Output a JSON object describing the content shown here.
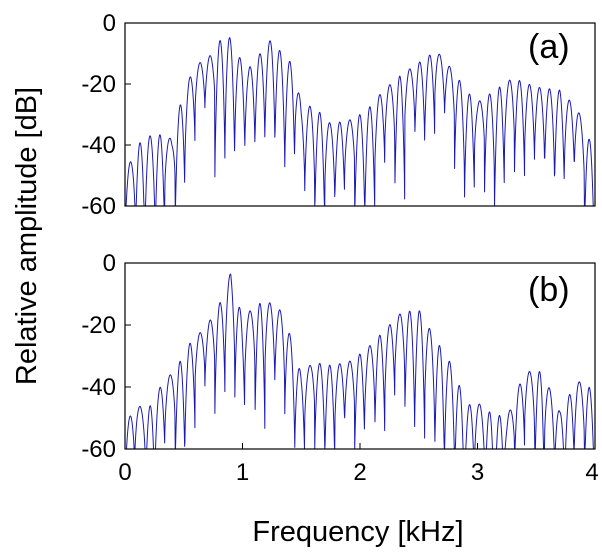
{
  "figure": {
    "xlabel": "Frequency [kHz]",
    "ylabel": "Relative amplitude [dB]",
    "line_color": "#1b1bb0"
  },
  "chart_data": [
    {
      "type": "line",
      "panel_label": "(a)",
      "xlim": [
        0,
        4
      ],
      "ylim": [
        -60,
        0
      ],
      "x_ticks": [
        0,
        1,
        2,
        3,
        4
      ],
      "y_ticks": [
        0,
        -20,
        -40,
        -60
      ],
      "y_tick_labels": [
        "0",
        "-20",
        "-40",
        "-60"
      ],
      "lobe_spacing_khz": 0.085,
      "envelope": {
        "x": [
          0,
          0.1,
          0.25,
          0.4,
          0.5,
          0.6,
          0.75,
          0.86,
          0.95,
          1.05,
          1.15,
          1.25,
          1.35,
          1.45,
          1.5,
          1.6,
          1.75,
          1.9,
          2.05,
          2.2,
          2.35,
          2.5,
          2.65,
          2.8,
          2.9,
          3.0,
          3.15,
          3.3,
          3.5,
          3.7,
          3.85,
          3.95,
          4.0
        ],
        "y": [
          -50,
          -40,
          -36,
          -38,
          -22,
          -14,
          -10,
          -2,
          -10,
          -15,
          -10,
          -5,
          -11,
          -14,
          -28,
          -27,
          -33,
          -32,
          -29,
          -22,
          -17,
          -13,
          -9,
          -16,
          -22,
          -26,
          -22,
          -18,
          -21,
          -22,
          -28,
          -38,
          -42
        ]
      }
    },
    {
      "type": "line",
      "panel_label": "(b)",
      "xlim": [
        0,
        4
      ],
      "ylim": [
        -60,
        0
      ],
      "x_ticks": [
        0,
        1,
        2,
        3,
        4
      ],
      "x_tick_labels": [
        "0",
        "1",
        "2",
        "3",
        "4"
      ],
      "y_ticks": [
        0,
        -20,
        -40,
        -60
      ],
      "y_tick_labels": [
        "0",
        "-20",
        "-40",
        "-60"
      ],
      "lobe_spacing_khz": 0.085,
      "envelope": {
        "x": [
          0,
          0.1,
          0.2,
          0.3,
          0.45,
          0.55,
          0.7,
          0.82,
          0.9,
          1.0,
          1.1,
          1.2,
          1.35,
          1.5,
          1.6,
          1.75,
          1.9,
          2.05,
          2.2,
          2.35,
          2.5,
          2.65,
          2.8,
          2.9,
          3.0,
          3.1,
          3.25,
          3.4,
          3.55,
          3.7,
          3.85,
          3.95,
          4.0
        ],
        "y": [
          -52,
          -46,
          -47,
          -40,
          -33,
          -26,
          -20,
          -12,
          -3,
          -18,
          -14,
          -12,
          -16,
          -36,
          -32,
          -33,
          -32,
          -28,
          -22,
          -16,
          -15,
          -25,
          -34,
          -46,
          -45,
          -48,
          -50,
          -35,
          -35,
          -48,
          -38,
          -40,
          -44
        ]
      }
    }
  ]
}
